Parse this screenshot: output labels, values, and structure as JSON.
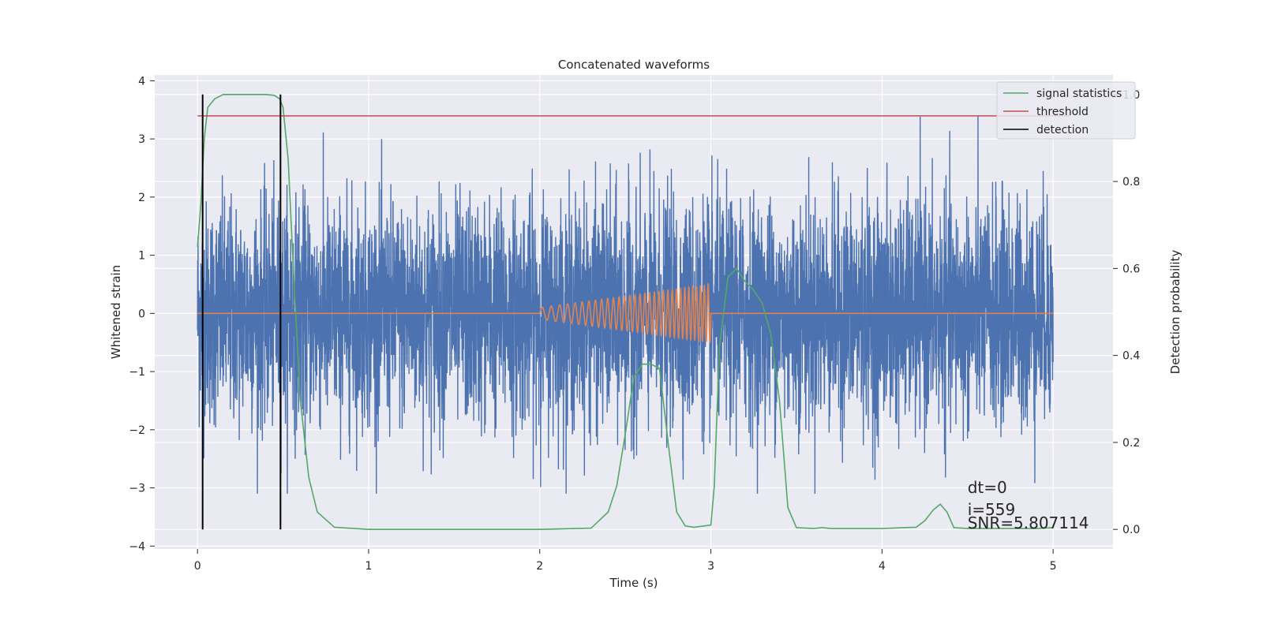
{
  "chart_data": {
    "type": "line",
    "title": "Concatenated waveforms",
    "xlabel": "Time (s)",
    "ylabel_left": "Whitened strain",
    "ylabel_right": "Detection probability",
    "xlim": [
      -0.25,
      5.35
    ],
    "ylim_left": [
      -4.05,
      4.1
    ],
    "ylim_right": [
      -0.045,
      1.045
    ],
    "x_ticks": [
      0,
      1,
      2,
      3,
      4,
      5
    ],
    "x_tick_labels": [
      "0",
      "1",
      "2",
      "3",
      "4",
      "5"
    ],
    "y_left_ticks": [
      -4,
      -3,
      -2,
      -1,
      0,
      1,
      2,
      3,
      4
    ],
    "y_left_tick_labels": [
      "−4",
      "−3",
      "−2",
      "−1",
      "0",
      "1",
      "2",
      "3",
      "4"
    ],
    "y_right_ticks": [
      0.0,
      0.2,
      0.4,
      0.6,
      0.8,
      1.0
    ],
    "y_right_tick_labels": [
      "0.0",
      "0.2",
      "0.4",
      "0.6",
      "0.8",
      "1.0"
    ],
    "grid": true,
    "legend_position": "top-right",
    "noise": {
      "x_range": [
        0,
        5
      ],
      "typical_amplitude": 1.0,
      "peak_range": [
        -3.1,
        3.75
      ],
      "color": "#4c72b0"
    },
    "chirp": {
      "x_range": [
        2.0,
        3.0
      ],
      "amplitude_start": 0.1,
      "amplitude_end": 0.5,
      "cycles": 32,
      "color": "#dd8452"
    },
    "series": [
      {
        "name": "signal statistics",
        "color": "#55a868",
        "axis": "right",
        "x": [
          0.0,
          0.02,
          0.04,
          0.06,
          0.1,
          0.15,
          0.2,
          0.3,
          0.4,
          0.45,
          0.48,
          0.5,
          0.53,
          0.56,
          0.6,
          0.65,
          0.7,
          0.8,
          1.0,
          2.0,
          2.3,
          2.4,
          2.45,
          2.5,
          2.55,
          2.6,
          2.65,
          2.7,
          2.75,
          2.8,
          2.85,
          2.9,
          3.0,
          3.02,
          3.05,
          3.1,
          3.15,
          3.2,
          3.25,
          3.3,
          3.35,
          3.4,
          3.45,
          3.5,
          3.6,
          3.65,
          3.7,
          4.0,
          4.2,
          4.25,
          4.3,
          4.34,
          4.38,
          4.42,
          4.5,
          4.9,
          5.0
        ],
        "y": [
          0.65,
          0.75,
          0.9,
          0.97,
          0.99,
          1.0,
          1.0,
          1.0,
          1.0,
          0.998,
          0.99,
          0.97,
          0.85,
          0.6,
          0.3,
          0.12,
          0.04,
          0.005,
          0.0,
          0.0,
          0.003,
          0.04,
          0.1,
          0.22,
          0.35,
          0.38,
          0.38,
          0.37,
          0.2,
          0.04,
          0.008,
          0.005,
          0.01,
          0.1,
          0.42,
          0.58,
          0.6,
          0.57,
          0.55,
          0.52,
          0.45,
          0.3,
          0.05,
          0.004,
          0.002,
          0.004,
          0.002,
          0.002,
          0.005,
          0.02,
          0.045,
          0.058,
          0.04,
          0.004,
          0.002,
          0.002,
          0.004
        ]
      },
      {
        "name": "threshold",
        "color": "#c44e52",
        "axis": "right",
        "x": [
          0.0,
          5.1
        ],
        "y": [
          0.951,
          0.951
        ]
      },
      {
        "name": "detection",
        "color": "#000000",
        "axis": "right",
        "segments": [
          {
            "x": 0.03,
            "y": [
              0.0,
              1.0
            ]
          },
          {
            "x": 0.485,
            "y": [
              0.0,
              1.0
            ]
          }
        ]
      }
    ],
    "annotations": [
      "dt=0",
      "i=559",
      "SNR=5.807114"
    ]
  }
}
